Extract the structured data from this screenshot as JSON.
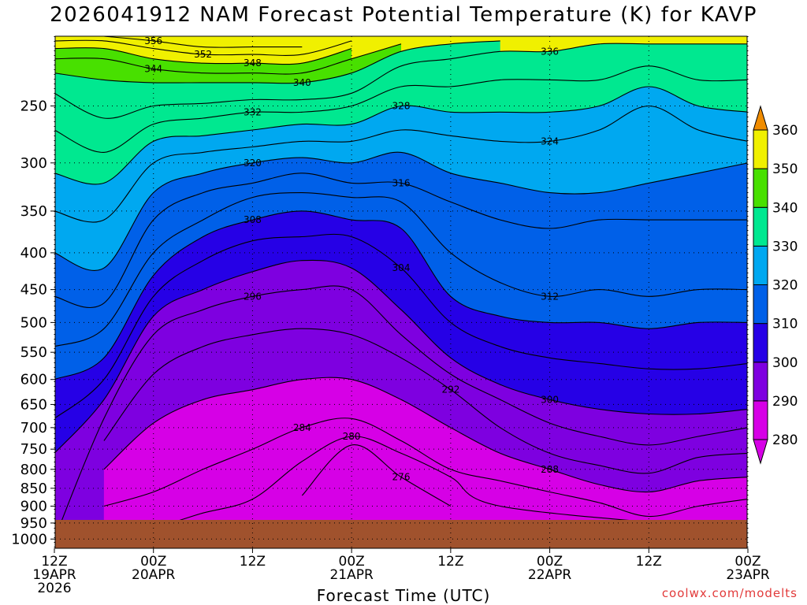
{
  "title": "2026041912 NAM Forecast Potential Temperature (K) for KAVP",
  "xlabel": "Forecast Time (UTC)",
  "credit": "coolwx.com/modelts",
  "chart_data": {
    "type": "contour",
    "title": "2026041912 NAM Forecast Potential Temperature (K) for KAVP",
    "xlabel": "Forecast Time (UTC)",
    "ylabel": "",
    "y_scale": "log",
    "yaxis_inverted": true,
    "x_ticks": [
      {
        "lines": [
          "12Z",
          "19APR",
          "2026"
        ],
        "hours": 0
      },
      {
        "lines": [
          "00Z",
          "20APR"
        ],
        "hours": 12
      },
      {
        "lines": [
          "12Z"
        ],
        "hours": 24
      },
      {
        "lines": [
          "00Z",
          "21APR"
        ],
        "hours": 36
      },
      {
        "lines": [
          "12Z"
        ],
        "hours": 48
      },
      {
        "lines": [
          "00Z",
          "22APR"
        ],
        "hours": 60
      },
      {
        "lines": [
          "12Z"
        ],
        "hours": 72
      },
      {
        "lines": [
          "00Z",
          "23APR"
        ],
        "hours": 84
      }
    ],
    "y_ticks": [
      250,
      300,
      350,
      400,
      450,
      500,
      550,
      600,
      650,
      700,
      750,
      800,
      850,
      900,
      950,
      1000
    ],
    "xlim_hours": [
      0,
      84
    ],
    "ylim_hpa": [
      200,
      1030
    ],
    "colorbar": {
      "labels": [
        280,
        290,
        300,
        310,
        320,
        330,
        340,
        350,
        360
      ],
      "colors": [
        "#d600e6",
        "#7e00e0",
        "#2600e6",
        "#0060e8",
        "#00a8f0",
        "#00e890",
        "#48e000",
        "#f0f000",
        "#f08c00"
      ]
    },
    "surface_color": "#a0522d",
    "contour_interval_K": 2,
    "contour_labels": [
      356,
      352,
      348,
      344,
      340,
      336,
      332,
      328,
      324,
      320,
      316,
      312,
      308,
      304,
      300,
      296,
      292,
      288,
      284,
      280,
      276
    ],
    "anchor_times_hours": [
      0,
      6,
      12,
      18,
      24,
      30,
      36,
      42,
      48,
      54,
      60,
      66,
      72,
      78,
      84
    ],
    "isentrope_pressure_hpa": {
      "276": [
        null,
        null,
        null,
        null,
        null,
        870,
        740,
        820,
        900,
        null,
        null,
        null,
        null,
        null,
        null
      ],
      "280": [
        null,
        950,
        960,
        920,
        880,
        780,
        720,
        760,
        820,
        900,
        null,
        null,
        null,
        960,
        null
      ],
      "284": [
        null,
        900,
        860,
        800,
        750,
        700,
        680,
        730,
        800,
        830,
        860,
        890,
        930,
        900,
        880
      ],
      "288": [
        null,
        800,
        690,
        640,
        620,
        600,
        600,
        640,
        700,
        760,
        800,
        840,
        860,
        830,
        820
      ],
      "292": [
        null,
        730,
        590,
        540,
        520,
        510,
        520,
        560,
        620,
        700,
        760,
        790,
        810,
        770,
        760
      ],
      "296": [
        1000,
        680,
        520,
        480,
        460,
        450,
        450,
        520,
        590,
        640,
        690,
        720,
        740,
        720,
        700
      ],
      "300": [
        760,
        640,
        490,
        450,
        425,
        410,
        420,
        480,
        560,
        610,
        640,
        660,
        670,
        670,
        660
      ],
      "304": [
        680,
        600,
        460,
        410,
        385,
        380,
        380,
        420,
        500,
        540,
        560,
        570,
        580,
        580,
        570
      ],
      "308": [
        600,
        560,
        430,
        380,
        360,
        350,
        360,
        370,
        460,
        490,
        500,
        500,
        510,
        500,
        500
      ],
      "312": [
        540,
        510,
        400,
        360,
        335,
        330,
        335,
        340,
        400,
        440,
        460,
        450,
        460,
        450,
        450
      ],
      "316": [
        460,
        470,
        360,
        330,
        320,
        310,
        320,
        320,
        340,
        360,
        370,
        360,
        360,
        360,
        360
      ],
      "320": [
        400,
        420,
        330,
        310,
        300,
        295,
        300,
        290,
        310,
        320,
        330,
        330,
        320,
        310,
        300
      ],
      "324": [
        350,
        360,
        300,
        290,
        285,
        280,
        280,
        270,
        275,
        280,
        280,
        270,
        250,
        270,
        280
      ],
      "328": [
        310,
        320,
        280,
        275,
        270,
        265,
        265,
        250,
        255,
        255,
        255,
        250,
        235,
        250,
        255
      ],
      "332": [
        270,
        290,
        265,
        260,
        255,
        255,
        250,
        235,
        235,
        230,
        230,
        230,
        220,
        230,
        230
      ],
      "336": [
        240,
        260,
        250,
        248,
        245,
        245,
        240,
        220,
        215,
        210,
        210,
        205,
        205,
        205,
        205
      ],
      "340": [
        225,
        230,
        232,
        232,
        232,
        232,
        225,
        210,
        205,
        203,
        null,
        null,
        null,
        null,
        null
      ],
      "344": [
        215,
        215,
        222,
        225,
        225,
        225,
        215,
        205,
        null,
        null,
        null,
        null,
        null,
        null,
        null
      ],
      "348": [
        208,
        208,
        215,
        218,
        218,
        218,
        208,
        null,
        null,
        null,
        null,
        null,
        null,
        null,
        null
      ],
      "352": [
        203,
        203,
        208,
        212,
        212,
        212,
        203,
        null,
        null,
        null,
        null,
        null,
        null,
        null,
        null
      ],
      "356": [
        null,
        200,
        203,
        207,
        207,
        207,
        null,
        null,
        null,
        null,
        null,
        null,
        null,
        null,
        null
      ]
    }
  }
}
